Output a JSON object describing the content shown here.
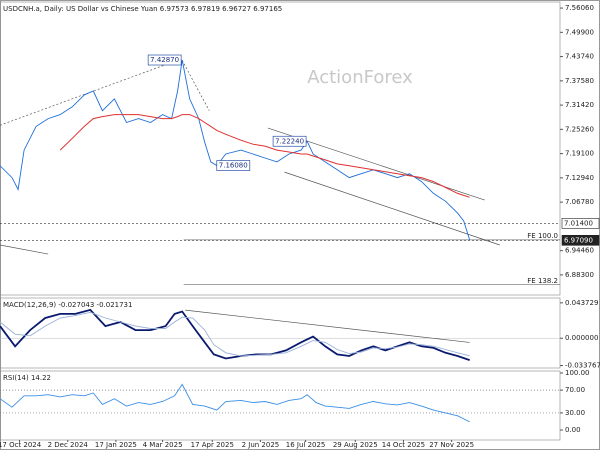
{
  "chart_data": [
    {
      "type": "line",
      "title": "USDCNH.a, Daily:  US Dollar vs Chinese Yuan  6.97573 6.97819 6.96727 6.97165",
      "watermark": "ActionForex",
      "xlim": [
        0,
        372
      ],
      "ylim": [
        6.832,
        7.576
      ],
      "yticks": [
        {
          "value": 7.5606,
          "label": "7.56060"
        },
        {
          "value": 7.499,
          "label": "7.49900"
        },
        {
          "value": 7.4374,
          "label": "7.43740"
        },
        {
          "value": 7.3758,
          "label": "7.37580"
        },
        {
          "value": 7.3142,
          "label": "7.31420"
        },
        {
          "value": 7.2526,
          "label": "7.25260"
        },
        {
          "value": 7.191,
          "label": "7.19100"
        },
        {
          "value": 7.1294,
          "label": "7.12940"
        },
        {
          "value": 7.0678,
          "label": "7.06780"
        },
        {
          "value": 6.9446,
          "label": "6.94460"
        },
        {
          "value": 6.883,
          "label": "6.88300"
        }
      ],
      "x": [
        0,
        8,
        12,
        16,
        24,
        32,
        40,
        48,
        56,
        62,
        68,
        76,
        84,
        92,
        100,
        108,
        114,
        118,
        121,
        126,
        132,
        136,
        140,
        144,
        150,
        160,
        168,
        176,
        184,
        192,
        200,
        204,
        208,
        216,
        224,
        232,
        240,
        248,
        256,
        264,
        272,
        280,
        288,
        296,
        304,
        308,
        312
      ],
      "series": [
        {
          "name": "Price",
          "color": "#1e6fd9",
          "values": [
            7.16,
            7.13,
            7.1,
            7.2,
            7.26,
            7.28,
            7.29,
            7.31,
            7.34,
            7.35,
            7.3,
            7.33,
            7.27,
            7.28,
            7.27,
            7.29,
            7.28,
            7.35,
            7.4287,
            7.33,
            7.28,
            7.22,
            7.17,
            7.1608,
            7.19,
            7.2,
            7.19,
            7.18,
            7.17,
            7.19,
            7.2,
            7.2224,
            7.19,
            7.17,
            7.15,
            7.13,
            7.14,
            7.15,
            7.14,
            7.13,
            7.14,
            7.12,
            7.09,
            7.07,
            7.04,
            7.02,
            6.97165
          ]
        },
        {
          "name": "MA",
          "color": "#e03030",
          "values": [
            null,
            null,
            null,
            null,
            null,
            null,
            7.2,
            7.23,
            7.26,
            7.28,
            7.285,
            7.29,
            7.29,
            7.29,
            7.285,
            7.28,
            7.28,
            7.285,
            7.29,
            7.29,
            7.28,
            7.27,
            7.26,
            7.25,
            7.24,
            7.225,
            7.215,
            7.21,
            7.2,
            7.195,
            7.19,
            7.19,
            7.185,
            7.175,
            7.165,
            7.16,
            7.155,
            7.15,
            7.145,
            7.14,
            7.135,
            7.13,
            7.12,
            7.105,
            7.09,
            7.085,
            7.08
          ]
        }
      ],
      "annotations": [
        {
          "x": 121,
          "value": 7.4287,
          "label": "7.42870"
        },
        {
          "x": 204,
          "value": 7.2224,
          "label": "7.22240"
        },
        {
          "x": 144,
          "value": 7.1608,
          "label": "7.16080"
        }
      ],
      "price_labels": [
        {
          "value": 7.014,
          "label": "7.01400"
        },
        {
          "value": 6.9709,
          "label": "6.97090"
        }
      ],
      "fib_levels": [
        {
          "value": 6.972,
          "label": "FE 100.0"
        },
        {
          "value": 6.858,
          "label": "FE 138.2"
        }
      ],
      "trendlines": [
        {
          "x": [
            0,
            118
          ],
          "values": [
            7.263,
            7.428
          ]
        },
        {
          "x": [
            121,
            139
          ],
          "values": [
            7.428,
            7.3
          ]
        },
        {
          "x": [
            178,
            322
          ],
          "values": [
            7.256,
            7.073
          ]
        },
        {
          "x": [
            189,
            332
          ],
          "values": [
            7.144,
            6.959
          ]
        },
        {
          "x": [
            0,
            32
          ],
          "values": [
            6.959,
            6.936
          ]
        }
      ]
    },
    {
      "type": "line",
      "title": "MACD(12,26,9) -0.027043 -0.021731",
      "xlim": [
        0,
        372
      ],
      "ylim": [
        -0.0368,
        0.0497
      ],
      "yticks": [
        0.043729,
        {
          "value": 0,
          "label": "0.000000"
        },
        -0.033767
      ],
      "x": [
        0,
        10,
        20,
        30,
        40,
        50,
        60,
        70,
        80,
        90,
        100,
        110,
        116,
        121,
        128,
        136,
        142,
        150,
        160,
        170,
        180,
        190,
        200,
        208,
        216,
        224,
        232,
        240,
        248,
        256,
        264,
        272,
        280,
        288,
        296,
        304,
        312
      ],
      "series": [
        {
          "name": "MACD",
          "color": "#0a1a6e",
          "values": [
            0.015,
            -0.01,
            0.01,
            0.025,
            0.03,
            0.03,
            0.035,
            0.015,
            0.02,
            0.01,
            0.01,
            0.015,
            0.03,
            0.033,
            0.015,
            -0.005,
            -0.02,
            -0.025,
            -0.022,
            -0.02,
            -0.02,
            -0.015,
            -0.005,
            0.002,
            -0.01,
            -0.02,
            -0.022,
            -0.015,
            -0.01,
            -0.015,
            -0.01,
            -0.005,
            -0.01,
            -0.012,
            -0.018,
            -0.022,
            -0.027043
          ]
        },
        {
          "name": "Signal",
          "color": "#9ab0d8",
          "values": [
            0.02,
            0.005,
            0.003,
            0.015,
            0.025,
            0.028,
            0.032,
            0.025,
            0.02,
            0.015,
            0.012,
            0.012,
            0.02,
            0.026,
            0.025,
            0.01,
            -0.008,
            -0.018,
            -0.022,
            -0.021,
            -0.02,
            -0.018,
            -0.01,
            -0.003,
            -0.005,
            -0.014,
            -0.019,
            -0.017,
            -0.012,
            -0.013,
            -0.011,
            -0.007,
            -0.008,
            -0.01,
            -0.014,
            -0.018,
            -0.021731
          ]
        }
      ],
      "trendlines": [
        {
          "x": [
            123,
            312
          ],
          "values": [
            0.0347,
            -0.0052
          ]
        }
      ]
    },
    {
      "type": "line",
      "title": "RSI(14) 14.22",
      "xlim": [
        0,
        372
      ],
      "ylim": [
        -17.5,
        103.5
      ],
      "yticks": [
        {
          "value": 100,
          "label": "100.00"
        },
        {
          "value": 70,
          "label": "70.00"
        },
        {
          "value": 30,
          "label": "30.00"
        },
        {
          "value": 0,
          "label": "0.00"
        }
      ],
      "levels": [
        70,
        30
      ],
      "x": [
        0,
        8,
        16,
        24,
        32,
        40,
        48,
        56,
        62,
        68,
        76,
        84,
        92,
        100,
        108,
        116,
        121,
        128,
        136,
        144,
        150,
        160,
        168,
        176,
        184,
        192,
        200,
        204,
        210,
        216,
        224,
        232,
        240,
        248,
        256,
        264,
        272,
        280,
        288,
        296,
        304,
        312
      ],
      "series": [
        {
          "name": "RSI",
          "color": "#3a8ee6",
          "values": [
            55,
            40,
            60,
            60,
            62,
            58,
            62,
            60,
            65,
            45,
            55,
            42,
            48,
            45,
            50,
            60,
            80,
            45,
            42,
            35,
            50,
            52,
            48,
            50,
            45,
            52,
            55,
            62,
            48,
            42,
            40,
            38,
            45,
            50,
            46,
            44,
            48,
            42,
            35,
            30,
            25,
            14.22
          ]
        }
      ],
      "xticks": [
        {
          "value": 13,
          "label": "17 Oct 2024"
        },
        {
          "value": 45,
          "label": "2 Dec 2024"
        },
        {
          "value": 77,
          "label": "17 Jan 2025"
        },
        {
          "value": 108,
          "label": "4 Mar 2025"
        },
        {
          "value": 141,
          "label": "17 Apr 2025"
        },
        {
          "value": 173,
          "label": "2 Jun 2025"
        },
        {
          "value": 203,
          "label": "16 Jul 2025"
        },
        {
          "value": 236,
          "label": "29 Aug 2025"
        },
        {
          "value": 268,
          "label": "14 Oct 2025"
        },
        {
          "value": 300,
          "label": "27 Nov 2025"
        }
      ]
    }
  ]
}
